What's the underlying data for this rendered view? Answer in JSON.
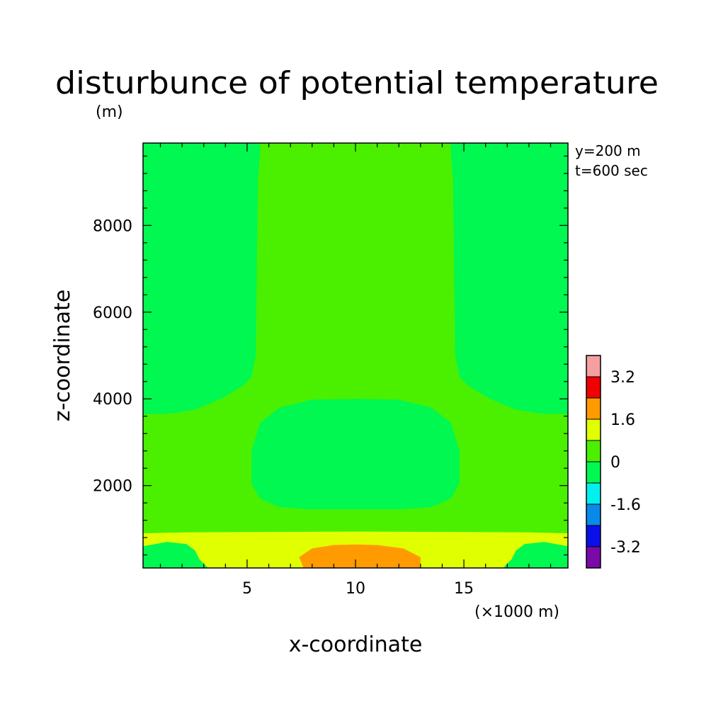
{
  "chart_data": {
    "type": "heatmap",
    "title": "disturbunce of potential temperature",
    "ylabel": "z-coordinate",
    "yunit": "(m)",
    "xlabel": "x-coordinate",
    "xunit": "(×1000 m)",
    "xlim": [
      0.2,
      19.8
    ],
    "ylim": [
      100,
      9900
    ],
    "xticks": [
      5,
      10,
      15
    ],
    "yticks": [
      2000,
      4000,
      6000,
      8000
    ],
    "x_minor_step": 1,
    "y_minor_step": 400,
    "annotations": [
      "y=200 m",
      "t=600 sec"
    ],
    "colorbar": {
      "levels": [
        -4.0,
        -3.2,
        -2.4,
        -1.6,
        -0.8,
        0,
        0.8,
        1.6,
        2.4,
        3.2,
        4.0
      ],
      "labels": [
        "-3.2",
        "-1.6",
        "0",
        "1.6",
        "3.2"
      ],
      "label_values": [
        -3.2,
        -1.6,
        0,
        1.6,
        3.2
      ],
      "colors": [
        "#7a0aa8",
        "#0a10e8",
        "#0a8ae8",
        "#00f0f0",
        "#00f850",
        "#4af000",
        "#e0ff00",
        "#ff9a00",
        "#f00000",
        "#f5a0a0"
      ]
    },
    "regions": [
      {
        "name": "background",
        "range": [
          0,
          0.8
        ],
        "color": "#4af000",
        "points": [
          [
            0.2,
            100
          ],
          [
            19.8,
            100
          ],
          [
            19.8,
            9900
          ],
          [
            0.2,
            9900
          ]
        ]
      },
      {
        "name": "upper-left-lobe",
        "range": [
          -0.8,
          0
        ],
        "color": "#00f850",
        "points": [
          [
            0.2,
            9900
          ],
          [
            5.6,
            9900
          ],
          [
            5.6,
            9700
          ],
          [
            5.5,
            9000
          ],
          [
            5.4,
            5000
          ],
          [
            5.2,
            4500
          ],
          [
            4.8,
            4300
          ],
          [
            3.8,
            4000
          ],
          [
            2.6,
            3750
          ],
          [
            1.5,
            3660
          ],
          [
            0.2,
            3650
          ]
        ]
      },
      {
        "name": "upper-right-lobe",
        "range": [
          -0.8,
          0
        ],
        "color": "#00f850",
        "points": [
          [
            19.8,
            9900
          ],
          [
            14.4,
            9900
          ],
          [
            14.4,
            9700
          ],
          [
            14.5,
            9000
          ],
          [
            14.6,
            5000
          ],
          [
            14.8,
            4500
          ],
          [
            15.2,
            4300
          ],
          [
            16.2,
            4000
          ],
          [
            17.4,
            3750
          ],
          [
            18.5,
            3660
          ],
          [
            19.8,
            3650
          ]
        ]
      },
      {
        "name": "middle-cold-bubble",
        "range": [
          -0.8,
          0
        ],
        "color": "#00f850",
        "points": [
          [
            8.0,
            3980
          ],
          [
            10.0,
            4000
          ],
          [
            12.0,
            3980
          ],
          [
            13.5,
            3800
          ],
          [
            14.4,
            3450
          ],
          [
            14.8,
            2800
          ],
          [
            14.8,
            2050
          ],
          [
            14.4,
            1700
          ],
          [
            13.5,
            1500
          ],
          [
            12.0,
            1450
          ],
          [
            8.0,
            1450
          ],
          [
            6.5,
            1500
          ],
          [
            5.6,
            1700
          ],
          [
            5.2,
            2050
          ],
          [
            5.2,
            2800
          ],
          [
            5.6,
            3450
          ],
          [
            6.5,
            3800
          ]
        ]
      },
      {
        "name": "surface-warm-layer",
        "range": [
          0.8,
          1.6
        ],
        "color": "#e0ff00",
        "points": [
          [
            0.2,
            100
          ],
          [
            19.8,
            100
          ],
          [
            19.8,
            900
          ],
          [
            18.0,
            920
          ],
          [
            15.0,
            930
          ],
          [
            10.0,
            940
          ],
          [
            5.0,
            930
          ],
          [
            2.0,
            920
          ],
          [
            0.2,
            900
          ]
        ]
      },
      {
        "name": "surface-left-cold-pocket",
        "range": [
          -0.8,
          0
        ],
        "color": "#00f850",
        "points": [
          [
            0.2,
            100
          ],
          [
            3.2,
            100
          ],
          [
            2.8,
            300
          ],
          [
            2.6,
            500
          ],
          [
            2.2,
            650
          ],
          [
            1.3,
            700
          ],
          [
            0.2,
            600
          ]
        ]
      },
      {
        "name": "surface-right-cold-pocket",
        "range": [
          -0.8,
          0
        ],
        "color": "#00f850",
        "points": [
          [
            19.8,
            100
          ],
          [
            16.8,
            100
          ],
          [
            17.2,
            300
          ],
          [
            17.4,
            500
          ],
          [
            17.8,
            650
          ],
          [
            18.7,
            700
          ],
          [
            19.8,
            600
          ]
        ]
      },
      {
        "name": "surface-warm-core",
        "range": [
          1.6,
          2.4
        ],
        "color": "#ff9a00",
        "points": [
          [
            7.6,
            100
          ],
          [
            13.0,
            100
          ],
          [
            13.0,
            350
          ],
          [
            12.2,
            550
          ],
          [
            11.0,
            630
          ],
          [
            10.0,
            640
          ],
          [
            9.0,
            630
          ],
          [
            8.0,
            550
          ],
          [
            7.4,
            350
          ]
        ]
      }
    ]
  }
}
